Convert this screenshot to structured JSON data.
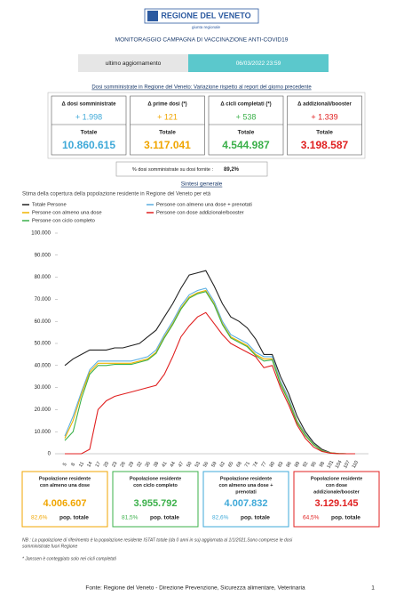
{
  "header": {
    "logo": "REGIONE DEL VENETO",
    "sub": "giunta regionale",
    "title": "MONITORAGGIO CAMPAGNA DI VACCINAZIONE ANTI-COVID19"
  },
  "update": {
    "label": "ultimo aggiornamento",
    "value": "06/03/2022 23:59"
  },
  "doses": {
    "title": "Dosi somministrate in Regione del Veneto: Variazione rispetto al report del giorno precedente",
    "cards": [
      {
        "label": "Δ dosi somministrate",
        "delta": "+ 1.998",
        "total_label": "Totale",
        "total": "10.860.615",
        "color": "#3fa9d8"
      },
      {
        "label": "Δ prime dosi (*)",
        "delta": "+ 121",
        "total_label": "Totale",
        "total": "3.117.041",
        "color": "#f0a500"
      },
      {
        "label": "Δ cicli completati (*)",
        "delta": "+ 538",
        "total_label": "Totale",
        "total": "4.544.987",
        "color": "#3bb04a"
      },
      {
        "label": "Δ addizionali/booster",
        "delta": "+ 1.339",
        "total_label": "Totale",
        "total": "3.198.587",
        "color": "#e02020"
      }
    ]
  },
  "ratio": {
    "label": "% dosi somministrate su dosi fornite :",
    "value": "89,2%"
  },
  "section": "Sintesi generale",
  "chart_data": {
    "type": "line",
    "title": "Stima della copertura della popolazione residente in Regione del Veneto per età",
    "categories": [
      "5",
      "8",
      "11",
      "14",
      "17",
      "20",
      "23",
      "26",
      "29",
      "32",
      "35",
      "38",
      "41",
      "44",
      "47",
      "50",
      "53",
      "56",
      "59",
      "62",
      "65",
      "68",
      "71",
      "74",
      "77",
      "80",
      "83",
      "86",
      "89",
      "92",
      "95",
      "98",
      "101",
      "104",
      "107",
      "110"
    ],
    "series": [
      {
        "name": "Totale Persone",
        "color": "#222222",
        "values": [
          40000,
          43000,
          45000,
          47000,
          47000,
          47000,
          48000,
          48000,
          49000,
          50000,
          53000,
          56000,
          62000,
          68000,
          75000,
          81000,
          82000,
          83000,
          76000,
          68000,
          62000,
          60000,
          57000,
          52000,
          45000,
          45000,
          35000,
          27000,
          17000,
          10000,
          5000,
          2000,
          500,
          100,
          0,
          0
        ]
      },
      {
        "name": "Persone con almeno una dose + prenotati",
        "color": "#5aaee0",
        "values": [
          8000,
          17000,
          28000,
          38000,
          42000,
          42000,
          42000,
          42000,
          42000,
          43000,
          44000,
          47000,
          54000,
          60000,
          67000,
          72000,
          74000,
          75000,
          69000,
          60000,
          54000,
          52000,
          50000,
          46000,
          44000,
          44000,
          33000,
          25000,
          15000,
          9000,
          4500,
          1500,
          400,
          100,
          0,
          0
        ]
      },
      {
        "name": "Persone con almeno una dose",
        "color": "#f0b400",
        "values": [
          7000,
          15000,
          27000,
          37000,
          41000,
          41000,
          41000,
          41000,
          41000,
          42000,
          43000,
          46000,
          53000,
          59000,
          66000,
          71000,
          73000,
          74000,
          68000,
          59000,
          53000,
          51000,
          49000,
          45000,
          43000,
          43000,
          32000,
          24000,
          14500,
          8500,
          4200,
          1400,
          350,
          80,
          0,
          0
        ]
      },
      {
        "name": "Persone con ciclo completo",
        "color": "#3bb04a",
        "values": [
          6000,
          10000,
          25000,
          36000,
          40000,
          40000,
          40500,
          40500,
          40500,
          41500,
          42500,
          45500,
          52500,
          58500,
          65500,
          70500,
          72500,
          73500,
          67500,
          58500,
          52500,
          50500,
          48500,
          44500,
          42000,
          42500,
          31500,
          23500,
          14000,
          8200,
          4000,
          1300,
          300,
          70,
          0,
          0
        ]
      },
      {
        "name": "Persone con dose addizionale/booster",
        "color": "#e02020",
        "values": [
          0,
          0,
          0,
          2000,
          20000,
          24000,
          26000,
          27000,
          28000,
          29000,
          30000,
          31000,
          36000,
          44000,
          53000,
          58000,
          62000,
          64000,
          59000,
          54000,
          50000,
          48000,
          46000,
          44000,
          39000,
          40000,
          30000,
          22000,
          13000,
          7000,
          3000,
          1000,
          300,
          50,
          0,
          0
        ]
      }
    ],
    "ylim": [
      0,
      100000
    ],
    "yticks": [
      0,
      {
        "value": 10000,
        "label": "10.000"
      },
      {
        "value": 20000,
        "label": "20.000"
      },
      {
        "value": 30000,
        "label": "30.000"
      },
      {
        "value": 40000,
        "label": "40.000"
      },
      {
        "value": 50000,
        "label": "50.000"
      },
      {
        "value": 60000,
        "label": "60.000"
      },
      {
        "value": 70000,
        "label": "70.000"
      },
      {
        "value": 80000,
        "label": "80.000"
      },
      {
        "value": 90000,
        "label": "90.000"
      },
      {
        "value": 100000,
        "label": "100.000"
      }
    ],
    "grid": false
  },
  "coverage": [
    {
      "label": [
        "Popolazione residente",
        "con almeno una dose"
      ],
      "value": "4.006.607",
      "share": "82,6%",
      "share_label": "pop. totale",
      "color": "#f0a500"
    },
    {
      "label": [
        "Popolazione residente",
        "con ciclo completo"
      ],
      "value": "3.955.792",
      "share": "81,5%",
      "share_label": "pop. totale",
      "color": "#3bb04a"
    },
    {
      "label": [
        "Popolazione residente",
        "con almeno una dose +",
        "prenotati"
      ],
      "value": "4.007.832",
      "share": "82,6%",
      "share_label": "pop. totale",
      "color": "#3fa9d8"
    },
    {
      "label": [
        "Popolazione residente",
        "con dose",
        "addizionale/booster"
      ],
      "value": "3.129.145",
      "share": "64,5%",
      "share_label": "pop. totale",
      "color": "#e02020"
    }
  ],
  "notes": [
    "NB : La popolazione di riferimento è la popolazione residente ISTAT totale (da 0 anni in su) aggiornata  al 1/1/2021.Sono comprese le dosi",
    "somministrate fuori Regione",
    "* Janssen è conteggiato solo nei cicli completati"
  ],
  "footer": {
    "source": "Fonte: Regione del Veneto - Direzione Prevenzione, Sicurezza alimentare, Veterinaria",
    "page": "1"
  }
}
